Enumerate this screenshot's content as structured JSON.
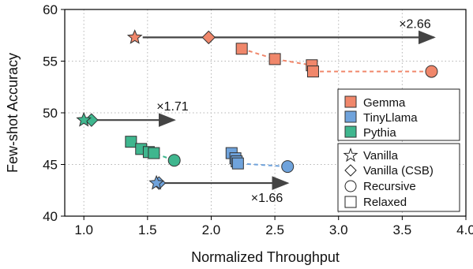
{
  "chart_data": {
    "type": "scatter",
    "xlabel": "Normalized Throughput",
    "ylabel": "Few-shot Accuracy",
    "xlim": [
      0.85,
      4.0
    ],
    "ylim": [
      40,
      60
    ],
    "xticks": [
      "1.0",
      "1.5",
      "2.0",
      "2.5",
      "3.0",
      "3.5",
      "4.0"
    ],
    "yticks": [
      "40",
      "45",
      "50",
      "55",
      "60"
    ],
    "grid": true,
    "colors": {
      "Gemma": "#F0876B",
      "TinyLlama": "#6FA3DC",
      "Pythia": "#3FB68E",
      "arrow": "#444444"
    },
    "legend_models": {
      "placement": "right",
      "items": [
        {
          "label": "Gemma",
          "color": "#F0876B"
        },
        {
          "label": "TinyLlama",
          "color": "#6FA3DC"
        },
        {
          "label": "Pythia",
          "color": "#3FB68E"
        }
      ]
    },
    "legend_methods": {
      "placement": "bottom-right",
      "items": [
        {
          "label": "Vanilla",
          "marker": "star"
        },
        {
          "label": "Vanilla (CSB)",
          "marker": "diamond"
        },
        {
          "label": "Recursive",
          "marker": "circle"
        },
        {
          "label": "Relaxed",
          "marker": "square"
        }
      ]
    },
    "series": [
      {
        "model": "Gemma",
        "vanilla": {
          "x": 1.4,
          "y": 57.3
        },
        "vanilla_csb": {
          "x": 1.98,
          "y": 57.3
        },
        "relaxed": [
          {
            "x": 2.24,
            "y": 56.2
          },
          {
            "x": 2.5,
            "y": 55.2
          },
          {
            "x": 2.79,
            "y": 54.6
          },
          {
            "x": 2.8,
            "y": 54.0
          }
        ],
        "recursive": {
          "x": 3.73,
          "y": 54.0
        }
      },
      {
        "model": "TinyLlama",
        "vanilla": {
          "x": 1.57,
          "y": 43.2
        },
        "vanilla_csb": {
          "x": 1.59,
          "y": 43.2
        },
        "relaxed": [
          {
            "x": 2.16,
            "y": 46.1
          },
          {
            "x": 2.19,
            "y": 45.6
          },
          {
            "x": 2.2,
            "y": 45.3
          },
          {
            "x": 2.21,
            "y": 45.1
          }
        ],
        "recursive": {
          "x": 2.6,
          "y": 44.8
        }
      },
      {
        "model": "Pythia",
        "vanilla": {
          "x": 1.0,
          "y": 49.3
        },
        "vanilla_csb": {
          "x": 1.06,
          "y": 49.3
        },
        "relaxed": [
          {
            "x": 1.37,
            "y": 47.2
          },
          {
            "x": 1.45,
            "y": 46.5
          },
          {
            "x": 1.51,
            "y": 46.2
          },
          {
            "x": 1.55,
            "y": 46.1
          }
        ],
        "recursive": {
          "x": 1.71,
          "y": 45.4
        }
      }
    ],
    "arrows": [
      {
        "from": {
          "x": 1.4,
          "y": 57.3
        },
        "to": {
          "x": 3.75,
          "y": 57.3
        },
        "label": "×2.66"
      },
      {
        "from": {
          "x": 1.0,
          "y": 49.3
        },
        "to": {
          "x": 1.71,
          "y": 49.3
        },
        "label": "×1.71"
      },
      {
        "from": {
          "x": 1.57,
          "y": 43.2
        },
        "to": {
          "x": 2.6,
          "y": 43.2
        },
        "label": "×1.66"
      }
    ]
  }
}
